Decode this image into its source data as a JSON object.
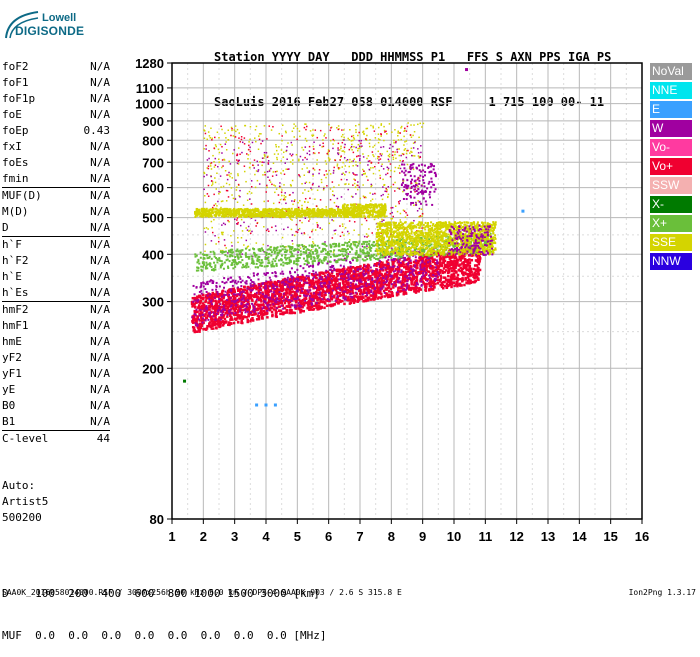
{
  "logo": {
    "line1": "Lowell",
    "line2": "DIGISONDE"
  },
  "header": {
    "line1": "Station YYYY DAY   DDD HHMMSS P1   FFS S AXN PPS IGA PS",
    "line2": "SaoLuis 2016 Feb27 058 014000 RSF     1 715 100 00- 11"
  },
  "params": [
    [
      {
        "n": "foF2",
        "v": "N/A"
      },
      {
        "n": "foF1",
        "v": "N/A"
      },
      {
        "n": "foF1p",
        "v": "N/A"
      },
      {
        "n": "foE",
        "v": "N/A"
      },
      {
        "n": "foEp",
        "v": "0.43"
      },
      {
        "n": "fxI",
        "v": "N/A"
      },
      {
        "n": "foEs",
        "v": "N/A"
      },
      {
        "n": "fmin",
        "v": "N/A"
      }
    ],
    [
      {
        "n": "MUF(D)",
        "v": "N/A"
      },
      {
        "n": "M(D)",
        "v": "N/A"
      },
      {
        "n": "D",
        "v": "N/A"
      }
    ],
    [
      {
        "n": "h`F",
        "v": "N/A"
      },
      {
        "n": "h`F2",
        "v": "N/A"
      },
      {
        "n": "h`E",
        "v": "N/A"
      },
      {
        "n": "h`Es",
        "v": "N/A"
      }
    ],
    [
      {
        "n": "hmF2",
        "v": "N/A"
      },
      {
        "n": "hmF1",
        "v": "N/A"
      },
      {
        "n": "hmE",
        "v": "N/A"
      },
      {
        "n": "yF2",
        "v": "N/A"
      },
      {
        "n": "yF1",
        "v": "N/A"
      },
      {
        "n": "yE",
        "v": "N/A"
      },
      {
        "n": "B0",
        "v": "N/A"
      },
      {
        "n": "B1",
        "v": "N/A"
      }
    ],
    [
      {
        "n": "C-level",
        "v": "44"
      }
    ]
  ],
  "autoscaling": {
    "line1": "Auto:",
    "line2": "Artist5",
    "line3": "500200"
  },
  "legend": [
    {
      "label": "NoVal",
      "color": "#9a9a9a"
    },
    {
      "label": "NNE",
      "color": "#00e5ee"
    },
    {
      "label": "E",
      "color": "#3aa0ff"
    },
    {
      "label": "W",
      "color": "#a000a0"
    },
    {
      "label": "Vo-",
      "color": "#ff3aa0"
    },
    {
      "label": "Vo+",
      "color": "#f00030"
    },
    {
      "label": "SSW",
      "color": "#f4b0b0"
    },
    {
      "label": "X-",
      "color": "#007a00"
    },
    {
      "label": "X+",
      "color": "#6abf3a"
    },
    {
      "label": "SSE",
      "color": "#d4d400"
    },
    {
      "label": "NNW",
      "color": "#2a00e0"
    }
  ],
  "bottom": {
    "line1": "D    100  200  400  600  800 1000 1500 3000 [km]",
    "line2": "MUF  0.0  0.0  0.0  0.0  0.0  0.0  0.0  0.0 [MHz]"
  },
  "footer": {
    "text": "SAA0K_2016058014000.RSF / 300fx256h 50 kHz 5.0 km / DPS-4 SAA0K 903 / 2.6 S 315.8 E",
    "version": "Ion2Png 1.3.17"
  },
  "chart_data": {
    "type": "scatter",
    "title": "",
    "xlabel": "",
    "ylabel": "",
    "xlim": [
      1,
      16
    ],
    "ylim": [
      80,
      1280
    ],
    "x_ticks": [
      1,
      2,
      3,
      4,
      5,
      6,
      7,
      8,
      9,
      10,
      11,
      12,
      13,
      14,
      15,
      16
    ],
    "y_ticks": [
      80,
      200,
      300,
      400,
      500,
      600,
      700,
      800,
      900,
      1000,
      1100,
      1280
    ],
    "grid": true,
    "x_scale": "linear",
    "y_scale": "log",
    "series": [
      {
        "name": "Vo+",
        "color": "#f00030",
        "x": [
          1.7,
          2.0,
          2.5,
          3.0,
          3.5,
          4.0,
          4.5,
          5.0,
          5.5,
          6.0,
          6.5,
          7.0,
          7.5,
          8.0,
          8.5,
          9.0,
          9.5,
          10.0,
          10.5
        ],
        "y": [
          270,
          290,
          300,
          305,
          310,
          320,
          325,
          330,
          335,
          345,
          350,
          355,
          360,
          365,
          370,
          375,
          370,
          375,
          380
        ]
      },
      {
        "name": "W",
        "color": "#a000a0",
        "x": [
          1.8,
          2.2,
          3.0,
          4.0,
          5.0,
          6.0,
          7.0,
          8.0,
          8.5,
          9.0,
          10.4
        ],
        "y": [
          260,
          280,
          300,
          310,
          320,
          330,
          340,
          350,
          600,
          580,
          1230
        ]
      },
      {
        "name": "SSE",
        "color": "#d4d400",
        "x": [
          1.8,
          2.5,
          3.0,
          3.5,
          4.0,
          4.5,
          5.0,
          5.5,
          6.0,
          6.5,
          7.0,
          7.5,
          8.0,
          8.5,
          9.0,
          9.5,
          10.0,
          10.5,
          11.0
        ],
        "y": [
          520,
          520,
          515,
          520,
          515,
          520,
          515,
          520,
          515,
          520,
          530,
          540,
          430,
          440,
          450,
          430,
          460,
          460,
          450
        ]
      },
      {
        "name": "X+",
        "color": "#6abf3a",
        "x": [
          2.0,
          3.0,
          4.0,
          5.0,
          6.0,
          7.0,
          8.0,
          9.0,
          10.0,
          11.0
        ],
        "y": [
          380,
          385,
          390,
          385,
          400,
          395,
          400,
          410,
          420,
          430
        ]
      },
      {
        "name": "X-",
        "color": "#007a00",
        "x": [
          1.4
        ],
        "y": [
          185
        ]
      },
      {
        "name": "E",
        "color": "#3aa0ff",
        "x": [
          3.7,
          4.0,
          4.3,
          12.2
        ],
        "y": [
          160,
          160,
          160,
          520
        ]
      }
    ]
  }
}
